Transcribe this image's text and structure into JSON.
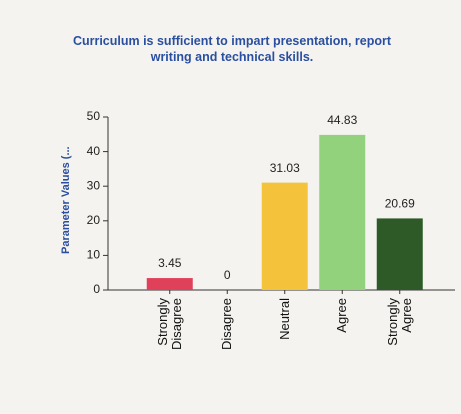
{
  "chart_data": {
    "type": "bar",
    "title": "Curriculum is sufficient to impart presentation, report writing and technical skills.",
    "y_label": "Parameter Values (...",
    "categories": [
      "Strongly Disagree",
      "Disagree",
      "Neutral",
      "Agree",
      "Strongly Agree"
    ],
    "values": [
      3.45,
      0,
      31.03,
      44.83,
      20.69
    ],
    "colors": [
      "#e0405a",
      "#9a9a9a",
      "#f5c33b",
      "#92d27c",
      "#2d5a27"
    ],
    "ylim": [
      0,
      50
    ],
    "yticks": [
      0,
      10,
      20,
      30,
      40,
      50
    ],
    "grid": false
  }
}
